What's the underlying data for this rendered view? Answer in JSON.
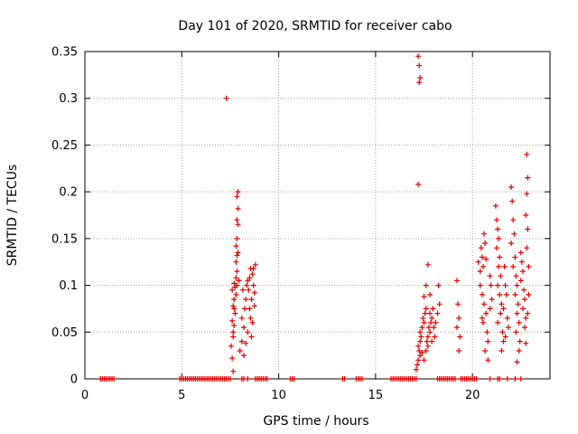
{
  "chart_data": {
    "type": "scatter",
    "title": "Day 101 of 2020, SRMTID for receiver cabo",
    "xlabel": "GPS time / hours",
    "ylabel": "SRMTID / TECUs",
    "xlim": [
      0,
      24
    ],
    "ylim": [
      0,
      0.35
    ],
    "x_ticks": [
      0,
      5,
      10,
      15,
      20
    ],
    "x_tick_labels": [
      "0",
      "5",
      "10",
      "15",
      "20"
    ],
    "y_ticks": [
      0,
      0.05,
      0.1,
      0.15,
      0.2,
      0.25,
      0.3,
      0.35
    ],
    "y_tick_labels": [
      "0",
      "0.05",
      "0.1",
      "0.15",
      "0.2",
      "0.25",
      "0.3",
      "0.35"
    ],
    "grid": true,
    "marker": "+",
    "marker_color": "#e00000",
    "series": [
      {
        "name": "SRMTID",
        "points": [
          [
            0.8,
            0
          ],
          [
            0.9,
            0
          ],
          [
            1.0,
            0
          ],
          [
            1.1,
            0
          ],
          [
            1.2,
            0
          ],
          [
            1.3,
            0
          ],
          [
            1.4,
            0
          ],
          [
            1.5,
            0
          ],
          [
            4.9,
            0
          ],
          [
            5.0,
            0
          ],
          [
            5.1,
            0
          ],
          [
            5.2,
            0
          ],
          [
            5.3,
            0
          ],
          [
            5.4,
            0
          ],
          [
            5.5,
            0
          ],
          [
            5.6,
            0
          ],
          [
            5.7,
            0
          ],
          [
            5.8,
            0
          ],
          [
            5.9,
            0
          ],
          [
            6.0,
            0
          ],
          [
            6.1,
            0
          ],
          [
            6.2,
            0
          ],
          [
            6.3,
            0
          ],
          [
            6.4,
            0
          ],
          [
            6.5,
            0
          ],
          [
            6.6,
            0
          ],
          [
            6.7,
            0
          ],
          [
            6.8,
            0
          ],
          [
            6.9,
            0
          ],
          [
            7.0,
            0
          ],
          [
            7.1,
            0
          ],
          [
            7.2,
            0
          ],
          [
            7.3,
            0
          ],
          [
            7.4,
            0
          ],
          [
            7.5,
            0
          ],
          [
            8.1,
            0
          ],
          [
            8.2,
            0
          ],
          [
            8.4,
            0
          ],
          [
            8.8,
            0
          ],
          [
            8.9,
            0
          ],
          [
            9.0,
            0
          ],
          [
            9.1,
            0
          ],
          [
            9.2,
            0
          ],
          [
            9.3,
            0
          ],
          [
            9.4,
            0
          ],
          [
            10.6,
            0
          ],
          [
            10.7,
            0
          ],
          [
            10.8,
            0
          ],
          [
            13.3,
            0
          ],
          [
            13.4,
            0
          ],
          [
            14.0,
            0
          ],
          [
            14.1,
            0
          ],
          [
            14.2,
            0
          ],
          [
            14.3,
            0
          ],
          [
            15.8,
            0
          ],
          [
            15.9,
            0
          ],
          [
            16.0,
            0
          ],
          [
            16.1,
            0
          ],
          [
            16.2,
            0
          ],
          [
            16.3,
            0
          ],
          [
            16.4,
            0
          ],
          [
            16.5,
            0
          ],
          [
            16.6,
            0
          ],
          [
            16.7,
            0
          ],
          [
            16.8,
            0
          ],
          [
            16.9,
            0
          ],
          [
            17.0,
            0
          ],
          [
            17.1,
            0
          ],
          [
            18.2,
            0
          ],
          [
            18.3,
            0
          ],
          [
            18.4,
            0
          ],
          [
            18.5,
            0
          ],
          [
            18.6,
            0
          ],
          [
            18.7,
            0
          ],
          [
            18.8,
            0
          ],
          [
            18.9,
            0
          ],
          [
            19.0,
            0
          ],
          [
            19.1,
            0
          ],
          [
            19.4,
            0
          ],
          [
            19.5,
            0
          ],
          [
            19.6,
            0
          ],
          [
            19.7,
            0
          ],
          [
            19.8,
            0
          ],
          [
            19.9,
            0
          ],
          [
            20.0,
            0
          ],
          [
            20.1,
            0
          ],
          [
            20.2,
            0
          ],
          [
            20.9,
            0
          ],
          [
            21.3,
            0
          ],
          [
            21.4,
            0
          ],
          [
            21.8,
            0
          ],
          [
            22.2,
            0
          ],
          [
            22.5,
            0
          ],
          [
            7.3,
            0.3
          ],
          [
            7.65,
            0.008
          ],
          [
            7.6,
            0.022
          ],
          [
            7.55,
            0.035
          ],
          [
            7.65,
            0.045
          ],
          [
            7.7,
            0.057
          ],
          [
            7.6,
            0.062
          ],
          [
            7.75,
            0.07
          ],
          [
            7.65,
            0.078
          ],
          [
            7.7,
            0.085
          ],
          [
            7.8,
            0.09
          ],
          [
            7.6,
            0.095
          ],
          [
            7.75,
            0.098
          ],
          [
            7.85,
            0.1
          ],
          [
            7.7,
            0.102
          ],
          [
            7.8,
            0.108
          ],
          [
            7.85,
            0.115
          ],
          [
            7.8,
            0.125
          ],
          [
            7.85,
            0.132
          ],
          [
            7.9,
            0.135
          ],
          [
            7.8,
            0.142
          ],
          [
            7.85,
            0.15
          ],
          [
            7.9,
            0.165
          ],
          [
            7.85,
            0.17
          ],
          [
            7.9,
            0.182
          ],
          [
            7.85,
            0.195
          ],
          [
            7.9,
            0.2
          ],
          [
            7.95,
            0.105
          ],
          [
            7.7,
            0.075
          ],
          [
            7.65,
            0.05
          ],
          [
            8.0,
            0.03
          ],
          [
            8.1,
            0.04
          ],
          [
            8.2,
            0.055
          ],
          [
            8.1,
            0.065
          ],
          [
            8.25,
            0.075
          ],
          [
            8.3,
            0.085
          ],
          [
            8.15,
            0.095
          ],
          [
            8.35,
            0.1
          ],
          [
            8.4,
            0.105
          ],
          [
            8.5,
            0.108
          ],
          [
            8.45,
            0.095
          ],
          [
            8.6,
            0.085
          ],
          [
            8.5,
            0.075
          ],
          [
            8.55,
            0.065
          ],
          [
            8.65,
            0.06
          ],
          [
            8.4,
            0.05
          ],
          [
            8.6,
            0.045
          ],
          [
            8.7,
            0.1
          ],
          [
            8.75,
            0.092
          ],
          [
            8.65,
            0.112
          ],
          [
            8.7,
            0.118
          ],
          [
            8.8,
            0.122
          ],
          [
            8.55,
            0.118
          ],
          [
            8.75,
            0.078
          ],
          [
            8.3,
            0.038
          ],
          [
            8.2,
            0.025
          ],
          [
            17.2,
            0.345
          ],
          [
            17.25,
            0.335
          ],
          [
            17.3,
            0.322
          ],
          [
            17.25,
            0.317
          ],
          [
            17.2,
            0.208
          ],
          [
            17.1,
            0.01
          ],
          [
            17.15,
            0.015
          ],
          [
            17.2,
            0.02
          ],
          [
            17.3,
            0.025
          ],
          [
            17.25,
            0.03
          ],
          [
            17.2,
            0.035
          ],
          [
            17.3,
            0.04
          ],
          [
            17.35,
            0.045
          ],
          [
            17.3,
            0.05
          ],
          [
            17.4,
            0.055
          ],
          [
            17.5,
            0.06
          ],
          [
            17.45,
            0.065
          ],
          [
            17.55,
            0.07
          ],
          [
            17.6,
            0.075
          ],
          [
            17.5,
            0.02
          ],
          [
            17.6,
            0.03
          ],
          [
            17.7,
            0.035
          ],
          [
            17.65,
            0.04
          ],
          [
            17.4,
            0.028
          ],
          [
            17.7,
            0.045
          ],
          [
            17.8,
            0.05
          ],
          [
            17.75,
            0.055
          ],
          [
            17.85,
            0.06
          ],
          [
            17.9,
            0.065
          ],
          [
            17.8,
            0.07
          ],
          [
            17.95,
            0.075
          ],
          [
            18.0,
            0.055
          ],
          [
            18.05,
            0.045
          ],
          [
            18.1,
            0.06
          ],
          [
            17.9,
            0.04
          ],
          [
            17.6,
            0.1
          ],
          [
            17.7,
            0.122
          ],
          [
            17.5,
            0.088
          ],
          [
            18.2,
            0.07
          ],
          [
            18.3,
            0.08
          ],
          [
            18.25,
            0.1
          ],
          [
            17.8,
            0.09
          ],
          [
            19.2,
            0.105
          ],
          [
            19.25,
            0.08
          ],
          [
            19.3,
            0.065
          ],
          [
            19.2,
            0.055
          ],
          [
            19.35,
            0.045
          ],
          [
            19.3,
            0.03
          ],
          [
            20.3,
            0.125
          ],
          [
            20.4,
            0.115
          ],
          [
            20.45,
            0.14
          ],
          [
            20.5,
            0.13
          ],
          [
            20.55,
            0.12
          ],
          [
            20.6,
            0.155
          ],
          [
            20.65,
            0.145
          ],
          [
            20.7,
            0.128
          ],
          [
            20.4,
            0.1
          ],
          [
            20.5,
            0.09
          ],
          [
            20.6,
            0.08
          ],
          [
            20.7,
            0.07
          ],
          [
            20.55,
            0.06
          ],
          [
            20.75,
            0.05
          ],
          [
            20.8,
            0.04
          ],
          [
            20.65,
            0.03
          ],
          [
            20.8,
            0.02
          ],
          [
            20.9,
            0.11
          ],
          [
            20.95,
            0.1
          ],
          [
            21.0,
            0.085
          ],
          [
            20.9,
            0.075
          ],
          [
            20.5,
            0.065
          ],
          [
            21.2,
            0.185
          ],
          [
            21.25,
            0.17
          ],
          [
            21.3,
            0.16
          ],
          [
            21.35,
            0.15
          ],
          [
            21.25,
            0.14
          ],
          [
            21.4,
            0.13
          ],
          [
            21.35,
            0.12
          ],
          [
            21.45,
            0.11
          ],
          [
            21.3,
            0.1
          ],
          [
            21.4,
            0.09
          ],
          [
            21.5,
            0.08
          ],
          [
            21.45,
            0.07
          ],
          [
            21.3,
            0.06
          ],
          [
            21.55,
            0.05
          ],
          [
            21.6,
            0.04
          ],
          [
            21.5,
            0.03
          ],
          [
            21.65,
            0.12
          ],
          [
            21.7,
            0.1
          ],
          [
            21.75,
            0.09
          ],
          [
            21.6,
            0.075
          ],
          [
            21.8,
            0.065
          ],
          [
            21.85,
            0.055
          ],
          [
            21.7,
            0.045
          ],
          [
            22.0,
            0.205
          ],
          [
            22.05,
            0.19
          ],
          [
            22.1,
            0.17
          ],
          [
            22.15,
            0.155
          ],
          [
            22.0,
            0.145
          ],
          [
            22.2,
            0.13
          ],
          [
            22.1,
            0.12
          ],
          [
            22.25,
            0.11
          ],
          [
            22.3,
            0.1
          ],
          [
            22.2,
            0.09
          ],
          [
            22.35,
            0.08
          ],
          [
            22.3,
            0.07
          ],
          [
            22.4,
            0.06
          ],
          [
            22.25,
            0.05
          ],
          [
            22.45,
            0.04
          ],
          [
            22.4,
            0.03
          ],
          [
            22.3,
            0.018
          ],
          [
            22.5,
            0.135
          ],
          [
            22.55,
            0.125
          ],
          [
            22.6,
            0.115
          ],
          [
            22.5,
            0.105
          ],
          [
            22.65,
            0.095
          ],
          [
            22.7,
            0.085
          ],
          [
            22.6,
            0.075
          ],
          [
            22.75,
            0.065
          ],
          [
            22.7,
            0.055
          ],
          [
            22.8,
            0.24
          ],
          [
            22.85,
            0.215
          ],
          [
            22.8,
            0.198
          ],
          [
            22.75,
            0.175
          ],
          [
            22.85,
            0.16
          ],
          [
            22.8,
            0.14
          ],
          [
            22.75,
            0.038
          ],
          [
            22.85,
            0.07
          ],
          [
            22.9,
            0.09
          ],
          [
            22.9,
            0.12
          ]
        ]
      }
    ]
  }
}
